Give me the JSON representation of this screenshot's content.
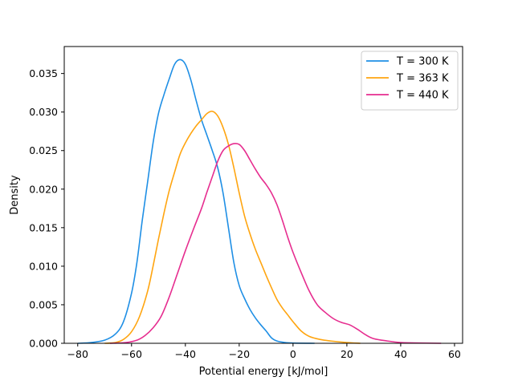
{
  "chart_data": {
    "type": "line",
    "title": "",
    "xlabel": "Potential energy [kJ/mol]",
    "ylabel": "Density",
    "xlim": [
      -85,
      63
    ],
    "ylim": [
      0,
      0.0385
    ],
    "xticks": [
      -80,
      -60,
      -40,
      -20,
      0,
      20,
      40,
      60
    ],
    "xtick_labels": [
      "−80",
      "−60",
      "−40",
      "−20",
      "0",
      "20",
      "40",
      "60"
    ],
    "yticks": [
      0,
      0.005,
      0.01,
      0.015,
      0.02,
      0.025,
      0.03,
      0.035
    ],
    "ytick_labels": [
      "0.000",
      "0.005",
      "0.010",
      "0.015",
      "0.020",
      "0.025",
      "0.030",
      "0.035"
    ],
    "grid": false,
    "legend_position": "top-right",
    "series": [
      {
        "name": "T = 300 K",
        "color": "#1f8fe5",
        "points": [
          [
            -80,
            0
          ],
          [
            -75,
            0.0001
          ],
          [
            -70,
            0.0004
          ],
          [
            -66,
            0.0012
          ],
          [
            -63,
            0.0028
          ],
          [
            -60,
            0.0065
          ],
          [
            -58,
            0.0105
          ],
          [
            -56,
            0.016
          ],
          [
            -54,
            0.021
          ],
          [
            -52,
            0.026
          ],
          [
            -50,
            0.0298
          ],
          [
            -48,
            0.0322
          ],
          [
            -46,
            0.0343
          ],
          [
            -44,
            0.0362
          ],
          [
            -42,
            0.0368
          ],
          [
            -40,
            0.0362
          ],
          [
            -38,
            0.0342
          ],
          [
            -36,
            0.0315
          ],
          [
            -34,
            0.029
          ],
          [
            -32,
            0.027
          ],
          [
            -30,
            0.025
          ],
          [
            -28,
            0.0228
          ],
          [
            -26,
            0.0195
          ],
          [
            -24,
            0.015
          ],
          [
            -22,
            0.0105
          ],
          [
            -20,
            0.0075
          ],
          [
            -18,
            0.0058
          ],
          [
            -16,
            0.0044
          ],
          [
            -14,
            0.0033
          ],
          [
            -12,
            0.0024
          ],
          [
            -10,
            0.0016
          ],
          [
            -8,
            0.0007
          ],
          [
            -6,
            0.0003
          ],
          [
            -3,
            0.0001
          ],
          [
            0,
            3e-05
          ],
          [
            8,
            0
          ]
        ]
      },
      {
        "name": "T = 363 K",
        "color": "#ffa510",
        "points": [
          [
            -70,
            0
          ],
          [
            -66,
            0.0001
          ],
          [
            -63,
            0.0005
          ],
          [
            -60,
            0.0015
          ],
          [
            -57,
            0.0035
          ],
          [
            -54,
            0.0068
          ],
          [
            -52,
            0.01
          ],
          [
            -50,
            0.0135
          ],
          [
            -48,
            0.0168
          ],
          [
            -46,
            0.0198
          ],
          [
            -44,
            0.0222
          ],
          [
            -42,
            0.0245
          ],
          [
            -40,
            0.026
          ],
          [
            -38,
            0.0272
          ],
          [
            -36,
            0.0282
          ],
          [
            -34,
            0.029
          ],
          [
            -32,
            0.0298
          ],
          [
            -30,
            0.0301
          ],
          [
            -28,
            0.0295
          ],
          [
            -26,
            0.028
          ],
          [
            -24,
            0.0258
          ],
          [
            -22,
            0.0228
          ],
          [
            -20,
            0.0195
          ],
          [
            -18,
            0.0165
          ],
          [
            -16,
            0.0142
          ],
          [
            -14,
            0.0122
          ],
          [
            -12,
            0.0105
          ],
          [
            -10,
            0.0088
          ],
          [
            -8,
            0.0072
          ],
          [
            -6,
            0.0057
          ],
          [
            -4,
            0.0046
          ],
          [
            -2,
            0.0037
          ],
          [
            0,
            0.0028
          ],
          [
            3,
            0.0016
          ],
          [
            6,
            0.0009
          ],
          [
            10,
            0.0005
          ],
          [
            14,
            0.0003
          ],
          [
            20,
            0.0001
          ],
          [
            25,
            0
          ]
        ]
      },
      {
        "name": "T = 440 K",
        "color": "#e62d8f",
        "points": [
          [
            -68,
            0
          ],
          [
            -62,
            0.0001
          ],
          [
            -58,
            0.0004
          ],
          [
            -55,
            0.001
          ],
          [
            -52,
            0.002
          ],
          [
            -49,
            0.0035
          ],
          [
            -46,
            0.006
          ],
          [
            -43,
            0.009
          ],
          [
            -40,
            0.012
          ],
          [
            -37,
            0.0148
          ],
          [
            -34,
            0.0175
          ],
          [
            -32,
            0.0196
          ],
          [
            -30,
            0.0216
          ],
          [
            -28,
            0.0236
          ],
          [
            -26,
            0.025
          ],
          [
            -24,
            0.0256
          ],
          [
            -22,
            0.0259
          ],
          [
            -20,
            0.0258
          ],
          [
            -18,
            0.025
          ],
          [
            -16,
            0.0238
          ],
          [
            -14,
            0.0226
          ],
          [
            -12,
            0.0215
          ],
          [
            -10,
            0.0206
          ],
          [
            -8,
            0.0195
          ],
          [
            -6,
            0.018
          ],
          [
            -4,
            0.016
          ],
          [
            -2,
            0.0138
          ],
          [
            0,
            0.0118
          ],
          [
            3,
            0.0092
          ],
          [
            6,
            0.0068
          ],
          [
            9,
            0.005
          ],
          [
            12,
            0.004
          ],
          [
            15,
            0.0032
          ],
          [
            18,
            0.0027
          ],
          [
            21,
            0.0024
          ],
          [
            24,
            0.0018
          ],
          [
            27,
            0.0011
          ],
          [
            30,
            0.0006
          ],
          [
            35,
            0.0003
          ],
          [
            40,
            0.0001
          ],
          [
            45,
            5e-05
          ],
          [
            55,
            0
          ]
        ]
      }
    ]
  }
}
